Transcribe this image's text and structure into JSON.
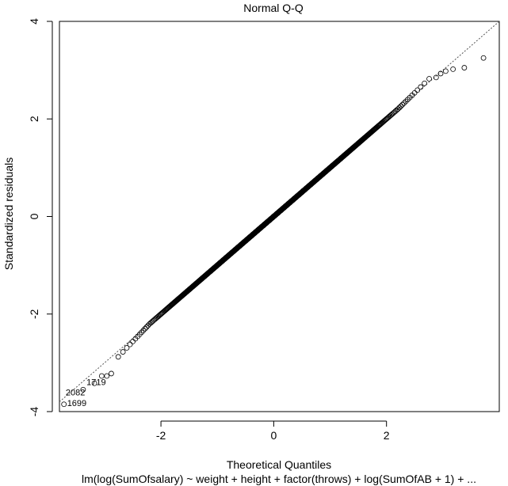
{
  "chart_data": {
    "type": "scatter",
    "title": "Normal Q-Q",
    "xlabel": "Theoretical Quantiles",
    "ylabel": "Standardized residuals",
    "subtitle": "lm(log(SumOfsalary) ~ weight + height + factor(throws) + log(SumOfAB + 1) + ...",
    "xlim": [
      -3.8,
      4.0
    ],
    "ylim": [
      -4.0,
      4.0
    ],
    "xticks": [
      -2,
      0,
      2
    ],
    "yticks": [
      -4,
      -2,
      0,
      2,
      4
    ],
    "grid": false,
    "reference_line": {
      "style": "dotted",
      "slope": 1.0,
      "intercept": 0.0
    },
    "series": [
      {
        "marker": "open-circle",
        "description_points": "dense Q-Q points; generated from normal quantiles with slight tail deviations",
        "n": 1200,
        "tail_points": [
          {
            "x": 3.72,
            "y": 3.25
          },
          {
            "x": 3.38,
            "y": 3.05
          },
          {
            "x": 3.18,
            "y": 3.02
          },
          {
            "x": 3.05,
            "y": 2.98
          },
          {
            "x": 2.96,
            "y": 2.93
          },
          {
            "x": 2.88,
            "y": 2.85
          },
          {
            "x": -3.72,
            "y": -3.85
          },
          {
            "x": -3.38,
            "y": -3.55
          },
          {
            "x": -3.18,
            "y": -3.42
          },
          {
            "x": -3.05,
            "y": -3.27
          },
          {
            "x": -2.96,
            "y": -3.27
          },
          {
            "x": -2.88,
            "y": -3.22
          }
        ]
      }
    ],
    "annotations": [
      {
        "label": "1719",
        "x": -3.18,
        "y": -3.42
      },
      {
        "label": "2082",
        "x": -3.38,
        "y": -3.55
      },
      {
        "label": "1699",
        "x": -3.72,
        "y": -3.85
      }
    ]
  }
}
